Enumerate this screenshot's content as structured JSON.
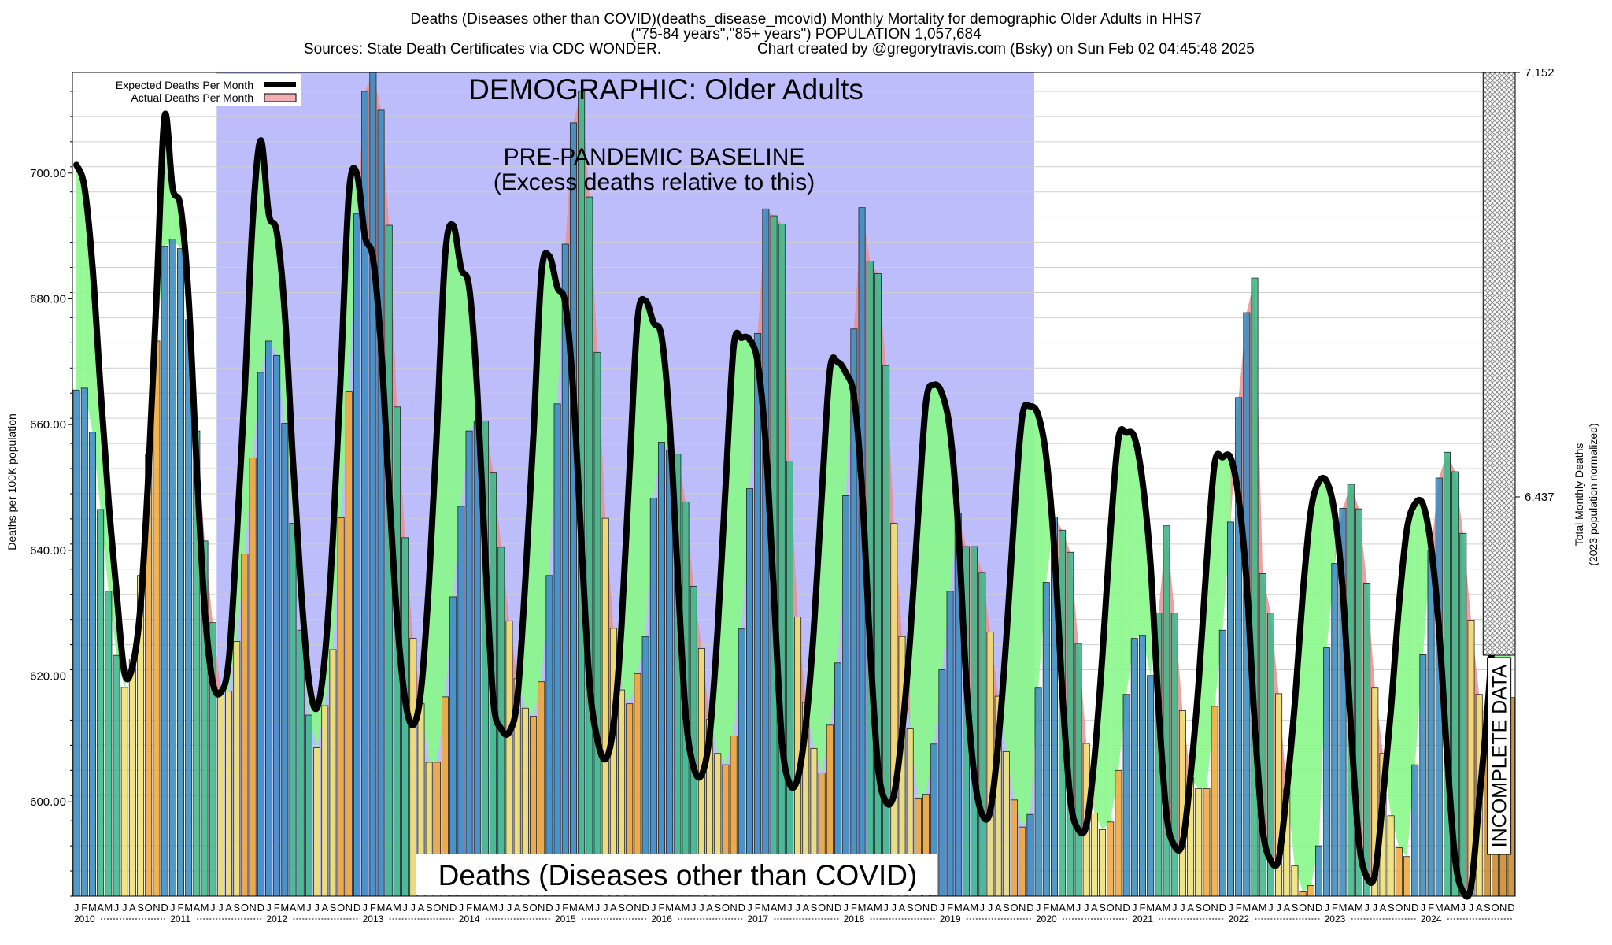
{
  "header": {
    "line1": "Deaths (Diseases other than COVID)(deaths_disease_mcovid) Monthly Mortality for demographic Older Adults in HHS7",
    "line2": "(\"75-84 years\",\"85+ years\") POPULATION 1,057,684",
    "sources": "Sources: State Death Certificates via CDC WONDER.",
    "created": "Chart created by @gregorytravis.com (Bsky) on Sun Feb 02 04:45:48 2025"
  },
  "colors": {
    "baseline_shade": "#bdbdfb",
    "expected_line": "#000000",
    "excess_fill": "#e89090",
    "deficit_fill": "#88f888",
    "winter_bar": "#3a8cc0",
    "spring_bar": "#3cb88a",
    "summer_bar": "#f0e070",
    "fall_bar": "#f0a838",
    "hatch": "#999999"
  },
  "chart_data": {
    "type": "bar",
    "title": "DEMOGRAPHIC: Older Adults",
    "subtitle": "Deaths (Diseases other than COVID)",
    "baseline_label_1": "PRE-PANDEMIC BASELINE",
    "baseline_label_2": "(Excess deaths relative to this)",
    "incomplete_label": "INCOMPLETE DATA",
    "ylabel": "Deaths per 100K population",
    "ylabel_right_1": "Total Monthly Deaths",
    "ylabel_right_2": "(2023 population normalized)",
    "ylim": [
      585,
      716
    ],
    "yticks": [
      600,
      620,
      640,
      660,
      680,
      700
    ],
    "ytick_labels": [
      "600.00",
      "620.00",
      "640.00",
      "660.00",
      "680.00",
      "700.00"
    ],
    "right_ticks": [
      {
        "label": "7,152",
        "value": 716
      },
      {
        "label": "6,437",
        "value": 648.5
      }
    ],
    "legend": [
      {
        "label": "Expected Deaths Per Month",
        "kind": "line"
      },
      {
        "label": "Actual Deaths Per Month",
        "kind": "box"
      }
    ],
    "baseline_period": {
      "start": "2011-07",
      "end": "2019-12"
    },
    "incomplete_period": {
      "start": "2024-09",
      "end": "2024-12"
    },
    "month_letters": [
      "J",
      "F",
      "M",
      "A",
      "M",
      "J",
      "J",
      "A",
      "S",
      "O",
      "N",
      "D"
    ],
    "years": [
      "2010",
      "2011",
      "2012",
      "2013",
      "2014",
      "2015",
      "2016",
      "2017",
      "2018",
      "2019",
      "2020",
      "2021",
      "2022",
      "2023",
      "2024"
    ],
    "series": [
      {
        "name": "Actual Deaths Per Month",
        "start": "2010-01",
        "values": [
          665.5,
          665.8,
          658.8,
          646.5,
          633.5,
          623.3,
          618.2,
          622.6,
          636.0,
          655.3,
          673.3,
          688.3,
          689.5,
          688.0,
          676.7,
          659.0,
          641.5,
          628.5,
          617.8,
          617.6,
          625.5,
          639.4,
          654.7,
          668.3,
          673.3,
          671.0,
          660.2,
          644.3,
          627.3,
          613.8,
          608.6,
          615.3,
          624.2,
          645.2,
          665.2,
          693.5,
          713.0,
          716.0,
          710.0,
          691.7,
          662.8,
          642.0,
          626.0,
          615.6,
          606.3,
          606.3,
          616.7,
          632.6,
          647.0,
          659.0,
          660.6,
          660.6,
          652.3,
          640.5,
          628.8,
          619.6,
          614.9,
          613.6,
          619.1,
          636.0,
          663.3,
          688.7,
          708.0,
          713.0,
          696.2,
          671.5,
          645.1,
          627.6,
          617.8,
          615.6,
          620.4,
          626.3,
          648.3,
          657.2,
          655.9,
          655.3,
          647.7,
          634.3,
          624.4,
          613.1,
          607.7,
          605.9,
          610.5,
          627.5,
          649.8,
          674.5,
          694.3,
          693.2,
          691.9,
          654.2,
          629.4,
          615.8,
          608.5,
          604.6,
          612.2,
          622.1,
          648.7,
          675.2,
          694.5,
          686.0,
          684.0,
          669.4,
          644.3,
          626.3,
          611.6,
          600.6,
          601.2,
          609.2,
          621.0,
          633.5,
          645.9,
          640.6,
          640.6,
          636.5,
          627.0,
          616.8,
          608.0,
          600.3,
          596.0,
          598.0,
          618.1,
          634.9,
          645.3,
          643.2,
          639.7,
          625.2,
          609.3,
          598.2,
          595.6,
          596.8,
          605.0,
          617.1,
          626.0,
          626.5,
          620.1,
          630.0,
          643.9,
          630.0,
          614.5,
          603.8,
          602.1,
          602.1,
          615.2,
          627.3,
          644.5,
          664.3,
          677.8,
          683.3,
          636.3,
          630.0,
          617.2,
          602.0,
          589.8,
          585.7,
          586.7,
          593.0,
          624.5,
          637.9,
          646.7,
          650.5,
          646.6,
          634.8,
          618.1,
          607.7,
          597.8,
          592.7,
          591.3,
          605.9,
          623.4,
          640.0,
          651.5,
          655.6,
          652.5,
          642.7,
          628.9,
          617.1,
          612.2,
          612.0,
          613.6,
          616.6
        ]
      },
      {
        "name": "Expected Deaths Per Month",
        "start": "2010-01",
        "values": [
          701.3,
          697.8,
          685.2,
          665.8,
          648.0,
          633.5,
          620.5,
          621.6,
          631.2,
          652.6,
          680.6,
          709.0,
          697.6,
          694.6,
          680.0,
          653.5,
          630.8,
          619.1,
          617.4,
          622.4,
          642.0,
          665.5,
          692.7,
          705.2,
          693.5,
          690.6,
          677.7,
          654.5,
          634.2,
          619.3,
          614.9,
          623.2,
          642.1,
          668.6,
          696.8,
          699.9,
          689.9,
          686.5,
          672.5,
          649.9,
          629.2,
          616.3,
          612.2,
          617.8,
          635.2,
          659.8,
          686.9,
          691.7,
          684.8,
          681.8,
          665.6,
          639.3,
          616.3,
          611.6,
          611.1,
          616.3,
          635.0,
          658.0,
          683.8,
          686.8,
          681.8,
          679.2,
          664.9,
          641.3,
          619.1,
          609.9,
          606.8,
          612.1,
          627.9,
          652.6,
          676.6,
          679.7,
          676.2,
          674.0,
          660.5,
          636.6,
          614.0,
          605.5,
          604.3,
          610.6,
          627.4,
          650.5,
          672.5,
          673.8,
          673.5,
          669.8,
          656.8,
          633.4,
          610.0,
          602.8,
          603.8,
          612.3,
          627.5,
          649.0,
          668.7,
          669.9,
          668.2,
          664.5,
          649.9,
          625.2,
          605.7,
          600.0,
          601.2,
          611.0,
          625.8,
          645.3,
          663.6,
          666.3,
          664.9,
          658.9,
          643.8,
          619.6,
          604.3,
          598.0,
          598.5,
          609.3,
          625.7,
          645.6,
          661.3,
          662.9,
          661.5,
          654.8,
          640.2,
          617.5,
          600.4,
          595.6,
          596.3,
          606.8,
          623.3,
          642.8,
          657.8,
          658.7,
          658.0,
          651.0,
          637.9,
          615.3,
          598.0,
          593.0,
          593.5,
          604.2,
          618.8,
          637.9,
          653.8,
          654.8,
          654.7,
          648.3,
          634.8,
          612.5,
          595.6,
          590.7,
          590.9,
          601.7,
          615.6,
          633.0,
          646.2,
          650.9,
          650.9,
          645.7,
          633.4,
          612.0,
          593.8,
          588.0,
          588.5,
          600.6,
          614.7,
          631.2,
          643.4,
          647.4,
          647.3,
          640.7,
          627.5,
          607.5,
          591.0,
          585.7,
          586.5,
          600.0,
          614.0,
          631.0,
          642.0,
          645.0
        ]
      }
    ]
  }
}
